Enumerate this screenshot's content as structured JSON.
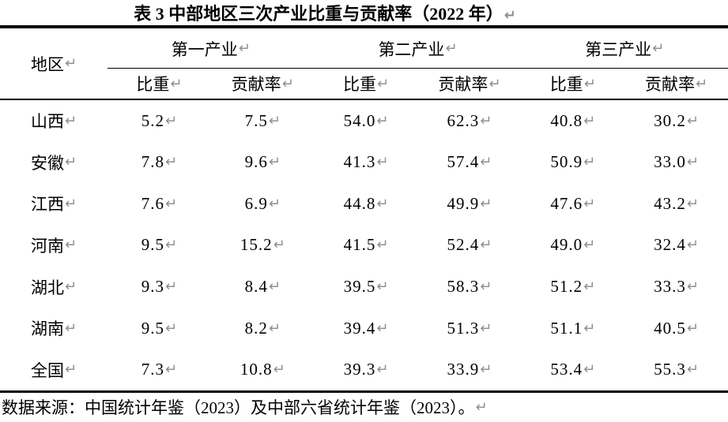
{
  "title": "表 3 中部地区三次产业比重与贡献率（2022 年）",
  "marks": {
    "return_mark": "↵"
  },
  "table": {
    "region_header": "地区",
    "groups": [
      {
        "label": "第一产业"
      },
      {
        "label": "第二产业"
      },
      {
        "label": "第三产业"
      }
    ],
    "sub_headers": [
      "比重",
      "贡献率",
      "比重",
      "贡献率",
      "比重",
      "贡献率"
    ],
    "rows": [
      {
        "region": "山西",
        "values": [
          "5.2",
          "7.5",
          "54.0",
          "62.3",
          "40.8",
          "30.2"
        ]
      },
      {
        "region": "安徽",
        "values": [
          "7.8",
          "9.6",
          "41.3",
          "57.4",
          "50.9",
          "33.0"
        ]
      },
      {
        "region": "江西",
        "values": [
          "7.6",
          "6.9",
          "44.8",
          "49.9",
          "47.6",
          "43.2"
        ]
      },
      {
        "region": "河南",
        "values": [
          "9.5",
          "15.2",
          "41.5",
          "52.4",
          "49.0",
          "32.4"
        ]
      },
      {
        "region": "湖北",
        "values": [
          "9.3",
          "8.4",
          "39.5",
          "58.3",
          "51.2",
          "33.3"
        ]
      },
      {
        "region": "湖南",
        "values": [
          "9.5",
          "8.2",
          "39.4",
          "51.3",
          "51.1",
          "40.5"
        ]
      },
      {
        "region": "全国",
        "values": [
          "7.3",
          "10.8",
          "39.3",
          "33.9",
          "53.4",
          "55.3"
        ]
      }
    ]
  },
  "source_note": "数据来源：中国统计年鉴（2023）及中部六省统计年鉴（2023）。",
  "colors": {
    "text": "#000000",
    "rule": "#000000",
    "return_mark": "#909090",
    "background": "#ffffff"
  }
}
